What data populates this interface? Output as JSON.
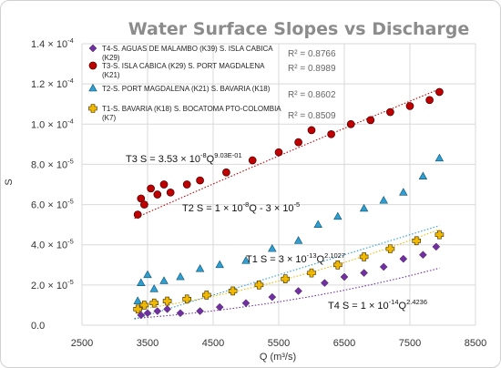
{
  "chart_data": {
    "type": "scatter",
    "title": "Water Surface Slopes vs Discharge",
    "xlabel": "Q (m³/s)",
    "ylabel": "S",
    "xlim": [
      2500,
      8500
    ],
    "ylim": [
      0,
      0.00014
    ],
    "xticks": [
      "2500",
      "3500",
      "4500",
      "5500",
      "6500",
      "7500",
      "8500"
    ],
    "yticks": [
      {
        "mant": "0.0",
        "exp": ""
      },
      {
        "mant": "2.0 × 10",
        "exp": "-5"
      },
      {
        "mant": "4.0 × 10",
        "exp": "-5"
      },
      {
        "mant": "6.0 × 10",
        "exp": "-5"
      },
      {
        "mant": "8.0 × 10",
        "exp": "-5"
      },
      {
        "mant": "1.0 × 10",
        "exp": "-4"
      },
      {
        "mant": "1.2 × 10",
        "exp": "-4"
      },
      {
        "mant": "1.4 × 10",
        "exp": "-4"
      }
    ],
    "grid": true,
    "legend_position": "top-left",
    "series": [
      {
        "key": "T4",
        "name": "T4-S. AGUAS DE MALAMBO (K39) S. ISLA CABICA (K29)",
        "color": "#7030a0",
        "marker": "diamond",
        "r2": "R² = 0.8766",
        "equation": {
          "prefix": "T4  S = 1 × 10",
          "exp1": "-14",
          "mid": "Q",
          "exp2": "2.4236",
          "tail": ""
        },
        "fit": {
          "a": 1e-14,
          "b": 2.4236
        },
        "points": [
          [
            3400,
            5e-06
          ],
          [
            3500,
            6e-06
          ],
          [
            3650,
            7e-06
          ],
          [
            3800,
            8e-06
          ],
          [
            4000,
            6e-06
          ],
          [
            4300,
            7e-06
          ],
          [
            4600,
            9e-06
          ],
          [
            5000,
            1.1e-05
          ],
          [
            5400,
            1.4e-05
          ],
          [
            5800,
            1.7e-05
          ],
          [
            6200,
            2.1e-05
          ],
          [
            6500,
            2.4e-05
          ],
          [
            6800,
            2.6e-05
          ],
          [
            7100,
            2.9e-05
          ],
          [
            7400,
            3.3e-05
          ],
          [
            7700,
            3.5e-05
          ],
          [
            7900,
            3.9e-05
          ]
        ]
      },
      {
        "key": "T3",
        "name": "T3-S. ISLA CABICA (K29) S. PORT MAGDALENA (K21)",
        "color": "#c00000",
        "marker": "circle",
        "r2": "R² = 0.8989",
        "equation": {
          "prefix": "T3  S = 3.53 × 10",
          "exp1": "-8",
          "mid": "Q",
          "exp2": "9.03E-01",
          "tail": ""
        },
        "fit": {
          "a": 3.53e-08,
          "b": 0.903
        },
        "points": [
          [
            3350,
            5.5e-05
          ],
          [
            3400,
            6.3e-05
          ],
          [
            3450,
            6e-05
          ],
          [
            3550,
            6.8e-05
          ],
          [
            3650,
            6.5e-05
          ],
          [
            3750,
            7e-05
          ],
          [
            3850,
            6.6e-05
          ],
          [
            4100,
            7e-05
          ],
          [
            4300,
            7.2e-05
          ],
          [
            4700,
            7.6e-05
          ],
          [
            5100,
            8.2e-05
          ],
          [
            5500,
            8.6e-05
          ],
          [
            5800,
            9.1e-05
          ],
          [
            6000,
            9.7e-05
          ],
          [
            6300,
            9.5e-05
          ],
          [
            6600,
            0.0001
          ],
          [
            6900,
            0.000102
          ],
          [
            7200,
            0.000106
          ],
          [
            7500,
            0.000109
          ],
          [
            7800,
            0.000112
          ],
          [
            7950,
            0.000116
          ]
        ]
      },
      {
        "key": "T2",
        "name": "T2-S. PORT MAGDALENA (K21) S. BAVARIA (K18)",
        "color": "#2e9fd0",
        "marker": "triangle",
        "r2": "R² = 0.8602",
        "equation": {
          "prefix": "T2  S = 1 × 10",
          "exp1": "-8",
          "mid": "Q - 3 × 10",
          "exp2": "-5",
          "tail": ""
        },
        "fit": {
          "a": 1e-08,
          "b": -3e-05
        },
        "points": [
          [
            3350,
            1.2e-05
          ],
          [
            3400,
            2.1e-05
          ],
          [
            3500,
            2.5e-05
          ],
          [
            3600,
            1.8e-05
          ],
          [
            3750,
            2.2e-05
          ],
          [
            4000,
            2.4e-05
          ],
          [
            4300,
            2.8e-05
          ],
          [
            4600,
            3e-05
          ],
          [
            5000,
            3.2e-05
          ],
          [
            5400,
            3.8e-05
          ],
          [
            5800,
            4.2e-05
          ],
          [
            6100,
            5e-05
          ],
          [
            6400,
            5.4e-05
          ],
          [
            6800,
            5.8e-05
          ],
          [
            7100,
            6.2e-05
          ],
          [
            7400,
            6.6e-05
          ],
          [
            7700,
            7.4e-05
          ],
          [
            7950,
            8.3e-05
          ]
        ]
      },
      {
        "key": "T1",
        "name": "T1-S. BAVARIA (K18) S. BOCATOMA PTO-COLOMBIA (K7)",
        "color": "#f0b800",
        "marker": "plus",
        "r2": "R² = 0.8509",
        "equation": {
          "prefix": "T1  S = 3 × 10",
          "exp1": "-13",
          "mid": "Q",
          "exp2": "2.1027",
          "tail": ""
        },
        "fit": {
          "a": 3e-13,
          "b": 2.1027
        },
        "points": [
          [
            3350,
            8e-06
          ],
          [
            3450,
            1e-05
          ],
          [
            3600,
            1.1e-05
          ],
          [
            3800,
            1.2e-05
          ],
          [
            4100,
            1.3e-05
          ],
          [
            4400,
            1.5e-05
          ],
          [
            4800,
            1.7e-05
          ],
          [
            5200,
            2e-05
          ],
          [
            5600,
            2.3e-05
          ],
          [
            6000,
            2.6e-05
          ],
          [
            6400,
            3e-05
          ],
          [
            6800,
            3.4e-05
          ],
          [
            7200,
            3.8e-05
          ],
          [
            7600,
            4.2e-05
          ],
          [
            7950,
            4.5e-05
          ]
        ]
      }
    ]
  }
}
